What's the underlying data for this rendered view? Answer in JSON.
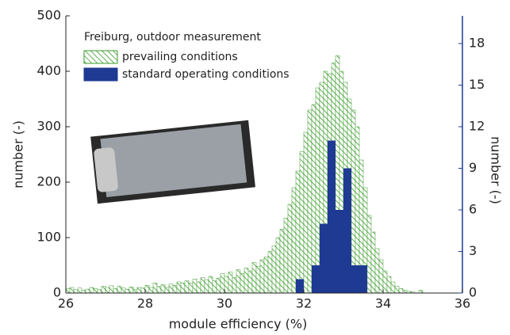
{
  "chart_data": {
    "type": "histogram",
    "x_label": "module efficiency (%)",
    "y_label": "number (-)",
    "y2_label": "number (-)",
    "legend_title": "Freiburg, outdoor measurement",
    "xlim": [
      26,
      36
    ],
    "xticks": [
      26,
      28,
      30,
      32,
      34,
      36
    ],
    "ylim": [
      0,
      500
    ],
    "yticks": [
      0,
      100,
      200,
      300,
      400,
      500
    ],
    "y2lim": [
      0,
      20
    ],
    "y2ticks": [
      0,
      3,
      6,
      9,
      12,
      15,
      18
    ],
    "y2_color": "#1f3a93",
    "series": [
      {
        "name": "prevailing conditions",
        "color": "#3a9a2a",
        "hatch": true,
        "bins": [
          26.0,
          26.1,
          26.2,
          26.3,
          26.4,
          26.5,
          26.6,
          26.7,
          26.8,
          26.9,
          27.0,
          27.1,
          27.2,
          27.3,
          27.4,
          27.5,
          27.6,
          27.7,
          27.8,
          27.9,
          28.0,
          28.1,
          28.2,
          28.3,
          28.4,
          28.5,
          28.6,
          28.7,
          28.8,
          28.9,
          29.0,
          29.1,
          29.2,
          29.3,
          29.4,
          29.5,
          29.6,
          29.7,
          29.8,
          29.9,
          30.0,
          30.1,
          30.2,
          30.3,
          30.4,
          30.5,
          30.6,
          30.7,
          30.8,
          30.9,
          31.0,
          31.1,
          31.2,
          31.3,
          31.4,
          31.5,
          31.6,
          31.7,
          31.8,
          31.9,
          32.0,
          32.1,
          32.2,
          32.3,
          32.4,
          32.5,
          32.6,
          32.7,
          32.8,
          32.9,
          33.0,
          33.1,
          33.2,
          33.3,
          33.4,
          33.5,
          33.6,
          33.7,
          33.8,
          33.9,
          34.0,
          34.1,
          34.2,
          34.3,
          34.4,
          34.5,
          34.6,
          34.7,
          34.8,
          34.9,
          35.0,
          35.1,
          35.2,
          35.3,
          35.4,
          35.5,
          35.6,
          35.7,
          35.8,
          35.9,
          36.0
        ],
        "values": [
          8,
          10,
          6,
          9,
          5,
          7,
          10,
          8,
          6,
          12,
          10,
          13,
          8,
          12,
          9,
          7,
          11,
          6,
          10,
          9,
          14,
          10,
          18,
          12,
          15,
          10,
          16,
          14,
          20,
          18,
          22,
          18,
          25,
          20,
          28,
          24,
          30,
          22,
          27,
          35,
          30,
          38,
          28,
          42,
          35,
          45,
          40,
          55,
          48,
          60,
          65,
          75,
          85,
          100,
          115,
          135,
          160,
          190,
          220,
          255,
          290,
          330,
          340,
          370,
          380,
          400,
          395,
          415,
          428,
          400,
          380,
          350,
          330,
          300,
          240,
          190,
          140,
          110,
          80,
          60,
          40,
          30,
          20,
          12,
          8,
          5,
          3,
          2,
          0,
          5,
          0,
          0,
          0,
          0,
          0,
          0,
          0,
          0,
          0,
          0
        ]
      },
      {
        "name": "standard operating conditions",
        "color": "#1f3a93",
        "axis": "y2",
        "hatch": false,
        "bins": [
          31.8,
          32.0,
          32.2,
          32.4,
          32.6,
          32.8,
          33.0,
          33.2,
          33.4,
          33.6
        ],
        "values": [
          1,
          0,
          2,
          5,
          11,
          6,
          9,
          2,
          2
        ]
      }
    ]
  }
}
